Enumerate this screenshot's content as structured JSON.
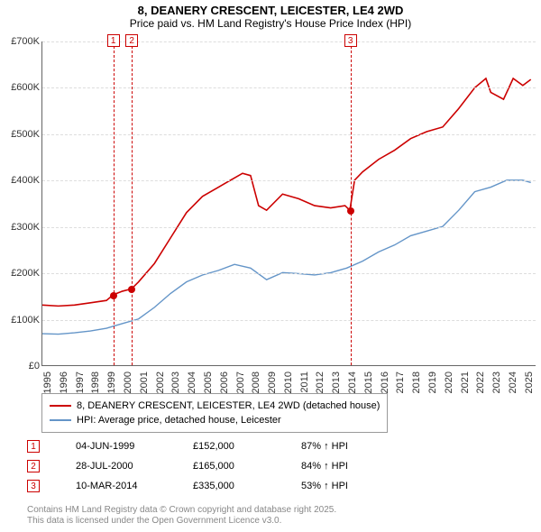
{
  "title": "8, DEANERY CRESCENT, LEICESTER, LE4 2WD",
  "subtitle": "Price paid vs. HM Land Registry's House Price Index (HPI)",
  "chart": {
    "type": "line",
    "xlim": [
      1995,
      2025.8
    ],
    "ylim": [
      0,
      700000
    ],
    "yticks": [
      0,
      100000,
      200000,
      300000,
      400000,
      500000,
      600000,
      700000
    ],
    "ytick_labels": [
      "£0",
      "£100K",
      "£200K",
      "£300K",
      "£400K",
      "£500K",
      "£600K",
      "£700K"
    ],
    "xticks": [
      1995,
      1996,
      1997,
      1998,
      1999,
      2000,
      2001,
      2002,
      2003,
      2004,
      2005,
      2006,
      2007,
      2008,
      2009,
      2010,
      2011,
      2012,
      2013,
      2014,
      2015,
      2016,
      2017,
      2018,
      2019,
      2020,
      2021,
      2022,
      2023,
      2024,
      2025
    ],
    "background_color": "#ffffff",
    "grid_color": "#dddddd",
    "axis_color": "#666666",
    "label_fontsize": 11,
    "series": [
      {
        "name": "8, DEANERY CRESCENT, LEICESTER, LE4 2WD (detached house)",
        "color": "#cc0000",
        "line_width": 1.6,
        "data": [
          [
            1995,
            130000
          ],
          [
            1996,
            128000
          ],
          [
            1997,
            130000
          ],
          [
            1998,
            135000
          ],
          [
            1999,
            140000
          ],
          [
            1999.42,
            152000
          ],
          [
            2000,
            160000
          ],
          [
            2000.57,
            165000
          ],
          [
            2001,
            180000
          ],
          [
            2002,
            220000
          ],
          [
            2003,
            275000
          ],
          [
            2004,
            330000
          ],
          [
            2005,
            365000
          ],
          [
            2006,
            385000
          ],
          [
            2007,
            405000
          ],
          [
            2007.5,
            415000
          ],
          [
            2008,
            410000
          ],
          [
            2008.5,
            345000
          ],
          [
            2009,
            335000
          ],
          [
            2010,
            370000
          ],
          [
            2011,
            360000
          ],
          [
            2012,
            345000
          ],
          [
            2013,
            340000
          ],
          [
            2013.9,
            345000
          ],
          [
            2014.2,
            335000
          ],
          [
            2014.5,
            400000
          ],
          [
            2015,
            418000
          ],
          [
            2016,
            445000
          ],
          [
            2017,
            465000
          ],
          [
            2018,
            490000
          ],
          [
            2019,
            505000
          ],
          [
            2020,
            515000
          ],
          [
            2021,
            555000
          ],
          [
            2022,
            600000
          ],
          [
            2022.7,
            620000
          ],
          [
            2023,
            590000
          ],
          [
            2023.8,
            575000
          ],
          [
            2024.4,
            620000
          ],
          [
            2025,
            605000
          ],
          [
            2025.5,
            618000
          ]
        ]
      },
      {
        "name": "HPI: Average price, detached house, Leicester",
        "color": "#6495c8",
        "line_width": 1.4,
        "data": [
          [
            1995,
            68000
          ],
          [
            1996,
            67000
          ],
          [
            1997,
            70000
          ],
          [
            1998,
            74000
          ],
          [
            1999,
            80000
          ],
          [
            2000,
            90000
          ],
          [
            2001,
            100000
          ],
          [
            2002,
            125000
          ],
          [
            2003,
            155000
          ],
          [
            2004,
            180000
          ],
          [
            2005,
            195000
          ],
          [
            2006,
            205000
          ],
          [
            2007,
            218000
          ],
          [
            2008,
            210000
          ],
          [
            2009,
            185000
          ],
          [
            2010,
            200000
          ],
          [
            2011,
            198000
          ],
          [
            2012,
            195000
          ],
          [
            2013,
            200000
          ],
          [
            2014,
            210000
          ],
          [
            2015,
            225000
          ],
          [
            2016,
            245000
          ],
          [
            2017,
            260000
          ],
          [
            2018,
            280000
          ],
          [
            2019,
            290000
          ],
          [
            2020,
            300000
          ],
          [
            2021,
            335000
          ],
          [
            2022,
            375000
          ],
          [
            2023,
            385000
          ],
          [
            2024,
            400000
          ],
          [
            2025,
            400000
          ],
          [
            2025.5,
            395000
          ]
        ]
      }
    ],
    "markers": [
      {
        "n": "1",
        "x": 1999.42,
        "y": 152000
      },
      {
        "n": "2",
        "x": 2000.57,
        "y": 165000
      },
      {
        "n": "3",
        "x": 2014.2,
        "y": 335000
      }
    ],
    "marker_color": "#cc0000"
  },
  "legend": {
    "items": [
      {
        "color": "#cc0000",
        "label": "8, DEANERY CRESCENT, LEICESTER, LE4 2WD (detached house)"
      },
      {
        "color": "#6495c8",
        "label": "HPI: Average price, detached house, Leicester"
      }
    ]
  },
  "transactions": [
    {
      "n": "1",
      "date": "04-JUN-1999",
      "price": "£152,000",
      "hpi": "87% ↑ HPI"
    },
    {
      "n": "2",
      "date": "28-JUL-2000",
      "price": "£165,000",
      "hpi": "84% ↑ HPI"
    },
    {
      "n": "3",
      "date": "10-MAR-2014",
      "price": "£335,000",
      "hpi": "53% ↑ HPI"
    }
  ],
  "license_line1": "Contains HM Land Registry data © Crown copyright and database right 2025.",
  "license_line2": "This data is licensed under the Open Government Licence v3.0."
}
